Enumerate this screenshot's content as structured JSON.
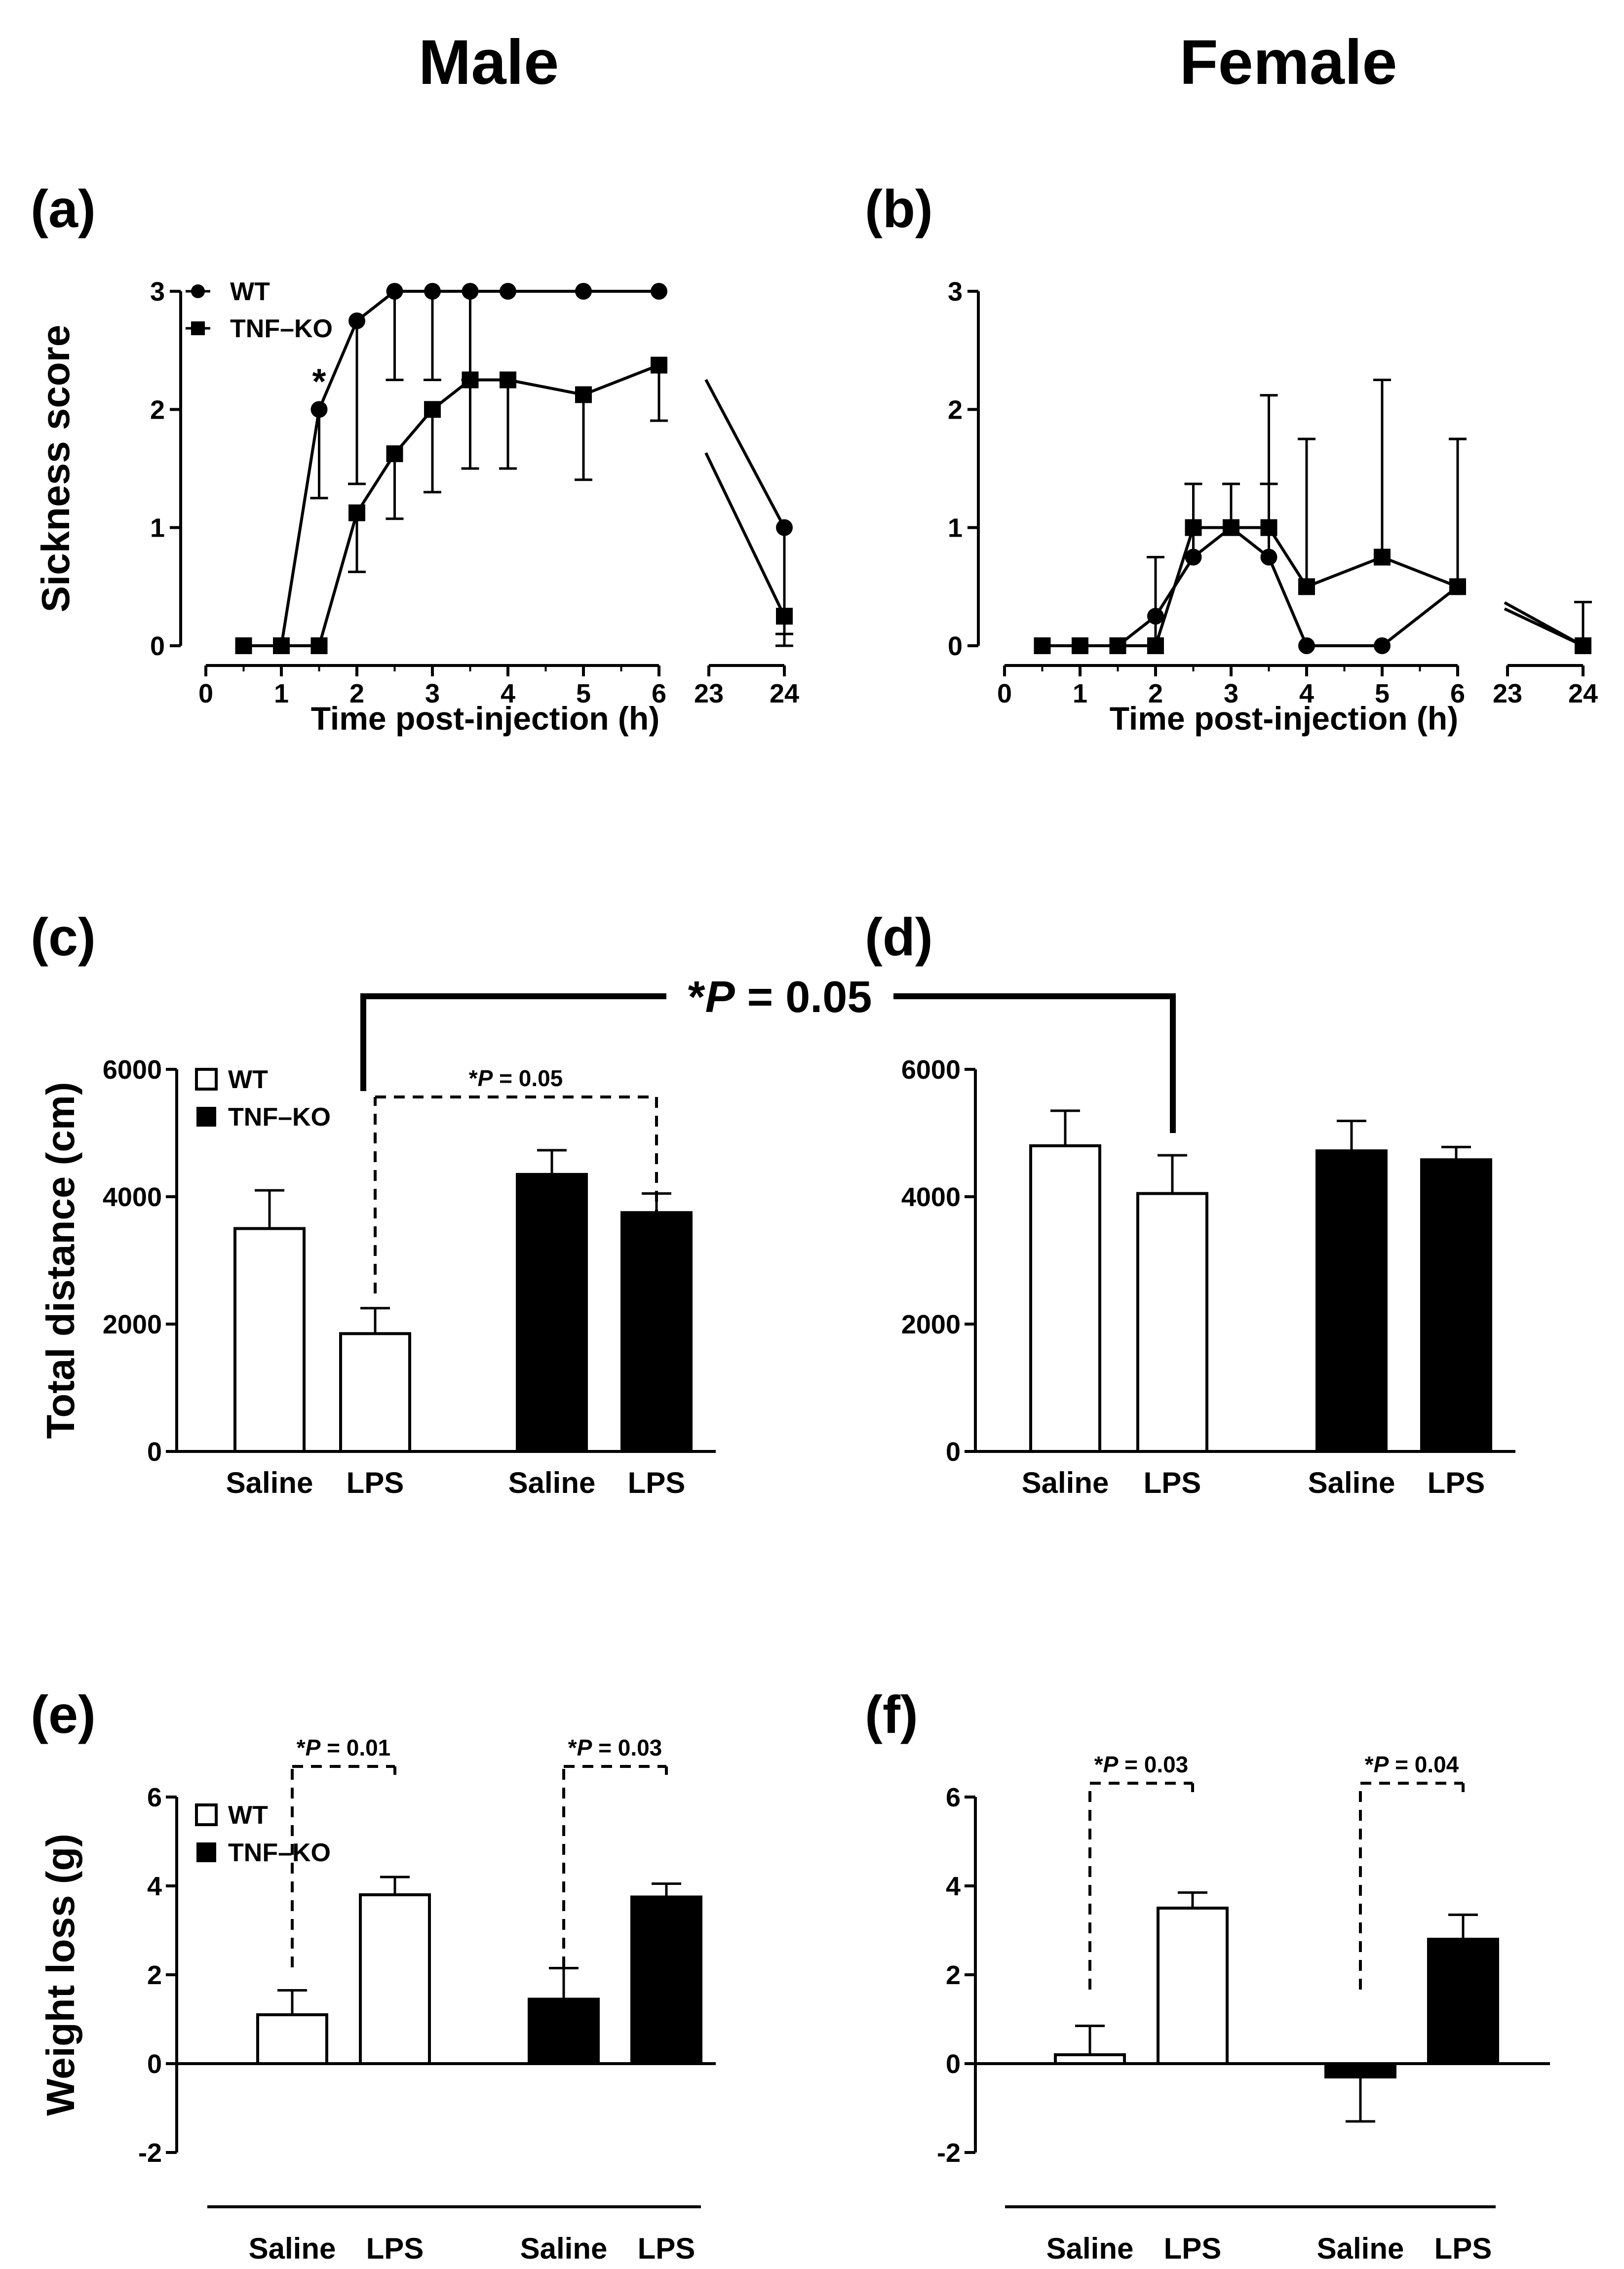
{
  "figure": {
    "col_titles": [
      "Male",
      "Female"
    ],
    "cross_panel_p": "*P = 0.05"
  },
  "chart_data": [
    {
      "panel": "(a)",
      "type": "line",
      "title": "Male",
      "ylabel": "Sickness score",
      "xlabel": "Time post-injection (h)",
      "ylim": [
        0,
        3
      ],
      "yticks": [
        0,
        1,
        2,
        3
      ],
      "xticks": [
        "0",
        "1",
        "2",
        "3",
        "4",
        "5",
        "6",
        "23",
        "24"
      ],
      "x_break": "6-23",
      "legend": [
        "WT",
        "TNF–KO"
      ],
      "series": [
        {
          "name": "WT",
          "marker": "circle",
          "x": [
            0.5,
            1,
            1.5,
            2,
            2.5,
            3,
            3.5,
            4,
            5,
            6,
            24
          ],
          "y": [
            0,
            0,
            2,
            2.75,
            3,
            3,
            3,
            3,
            3,
            3,
            1
          ],
          "err": [
            0,
            0,
            0.75,
            1.38,
            0.75,
            0.75,
            0.75,
            0,
            0,
            0,
            1
          ]
        },
        {
          "name": "TNF–KO",
          "marker": "square",
          "x": [
            0.5,
            1,
            1.5,
            2,
            2.5,
            3,
            3.5,
            4,
            5,
            6,
            24
          ],
          "y": [
            0,
            0,
            0,
            1.125,
            1.625,
            2,
            2.25,
            2.25,
            2.125,
            2.375,
            0.25
          ],
          "err": [
            0,
            0,
            0,
            0.5,
            0.55,
            0.7,
            0.75,
            0.75,
            0.72,
            0.47,
            0.15
          ]
        }
      ],
      "annotations": [
        {
          "x": 1.5,
          "text": "*"
        }
      ]
    },
    {
      "panel": "(b)",
      "type": "line",
      "title": "Female",
      "xlabel": "Time post-injection (h)",
      "ylim": [
        0,
        3
      ],
      "yticks": [
        0,
        1,
        2,
        3
      ],
      "xticks": [
        "0",
        "1",
        "2",
        "3",
        "4",
        "5",
        "6",
        "23",
        "24"
      ],
      "x_break": "6-23",
      "series": [
        {
          "name": "WT",
          "marker": "circle",
          "x": [
            0.5,
            1,
            1.5,
            2,
            2.5,
            3,
            3.5,
            4,
            5,
            6,
            24
          ],
          "y": [
            0,
            0,
            0,
            0.25,
            0.75,
            1,
            0.75,
            0,
            0,
            0.5,
            0
          ],
          "err": [
            0,
            0,
            0,
            0.5,
            0.62,
            0.37,
            0.62,
            0,
            0,
            1.25,
            0
          ]
        },
        {
          "name": "TNF–KO",
          "marker": "square",
          "x": [
            0.5,
            1,
            1.5,
            2,
            2.5,
            3,
            3.5,
            4,
            5,
            6,
            24
          ],
          "y": [
            0,
            0,
            0,
            0,
            1,
            1,
            1,
            0.5,
            0.75,
            0.5,
            0
          ],
          "err": [
            0,
            0,
            0,
            0.75,
            0,
            0,
            1.12,
            1.25,
            1.5,
            1.25,
            0.37
          ]
        }
      ]
    },
    {
      "panel": "(c)",
      "type": "bar",
      "ylabel": "Total distance (cm)",
      "ylim": [
        0,
        6000
      ],
      "yticks": [
        0,
        2000,
        4000,
        6000
      ],
      "categories": [
        "Saline",
        "LPS",
        "Saline",
        "LPS"
      ],
      "groups": [
        "WT",
        "WT",
        "TNF–KO",
        "TNF–KO"
      ],
      "values": [
        3500,
        1850,
        4350,
        3750
      ],
      "errors": [
        600,
        400,
        380,
        300
      ],
      "legend": [
        "WT",
        "TNF–KO"
      ],
      "comparisons": [
        {
          "from": 1,
          "to": 3,
          "label": "*P = 0.05",
          "style": "dashed"
        }
      ]
    },
    {
      "panel": "(d)",
      "type": "bar",
      "ylim": [
        0,
        6000
      ],
      "yticks": [
        0,
        2000,
        4000,
        6000
      ],
      "categories": [
        "Saline",
        "LPS",
        "Saline",
        "LPS"
      ],
      "groups": [
        "WT",
        "WT",
        "TNF–KO",
        "TNF–KO"
      ],
      "values": [
        4800,
        4050,
        4720,
        4580
      ],
      "errors": [
        550,
        600,
        470,
        200
      ]
    },
    {
      "panel": "(e)",
      "type": "bar",
      "ylabel": "Weight loss (g)",
      "ylim": [
        -2,
        6
      ],
      "yticks": [
        -2,
        0,
        2,
        4,
        6
      ],
      "categories": [
        "Saline",
        "LPS",
        "Saline",
        "LPS"
      ],
      "groups": [
        "WT",
        "WT",
        "TNF–KO",
        "TNF–KO"
      ],
      "values": [
        1.1,
        3.8,
        1.45,
        3.75
      ],
      "errors": [
        0.55,
        0.4,
        0.7,
        0.3
      ],
      "legend": [
        "WT",
        "TNF–KO"
      ],
      "comparisons": [
        {
          "from": 0,
          "to": 1,
          "label": "*P = 0.01",
          "style": "dashed"
        },
        {
          "from": 2,
          "to": 3,
          "label": "*P = 0.03",
          "style": "dashed"
        }
      ]
    },
    {
      "panel": "(f)",
      "type": "bar",
      "ylim": [
        -2,
        6
      ],
      "yticks": [
        -2,
        0,
        2,
        4,
        6
      ],
      "categories": [
        "Saline",
        "LPS",
        "Saline",
        "LPS"
      ],
      "groups": [
        "WT",
        "WT",
        "TNF–KO",
        "TNF–KO"
      ],
      "values": [
        0.2,
        3.5,
        -0.3,
        2.8
      ],
      "errors": [
        0.65,
        0.35,
        1.0,
        0.55
      ],
      "comparisons": [
        {
          "from": 0,
          "to": 1,
          "label": "*P = 0.03",
          "style": "dashed"
        },
        {
          "from": 2,
          "to": 3,
          "label": "*P = 0.04",
          "style": "dashed"
        }
      ]
    }
  ]
}
